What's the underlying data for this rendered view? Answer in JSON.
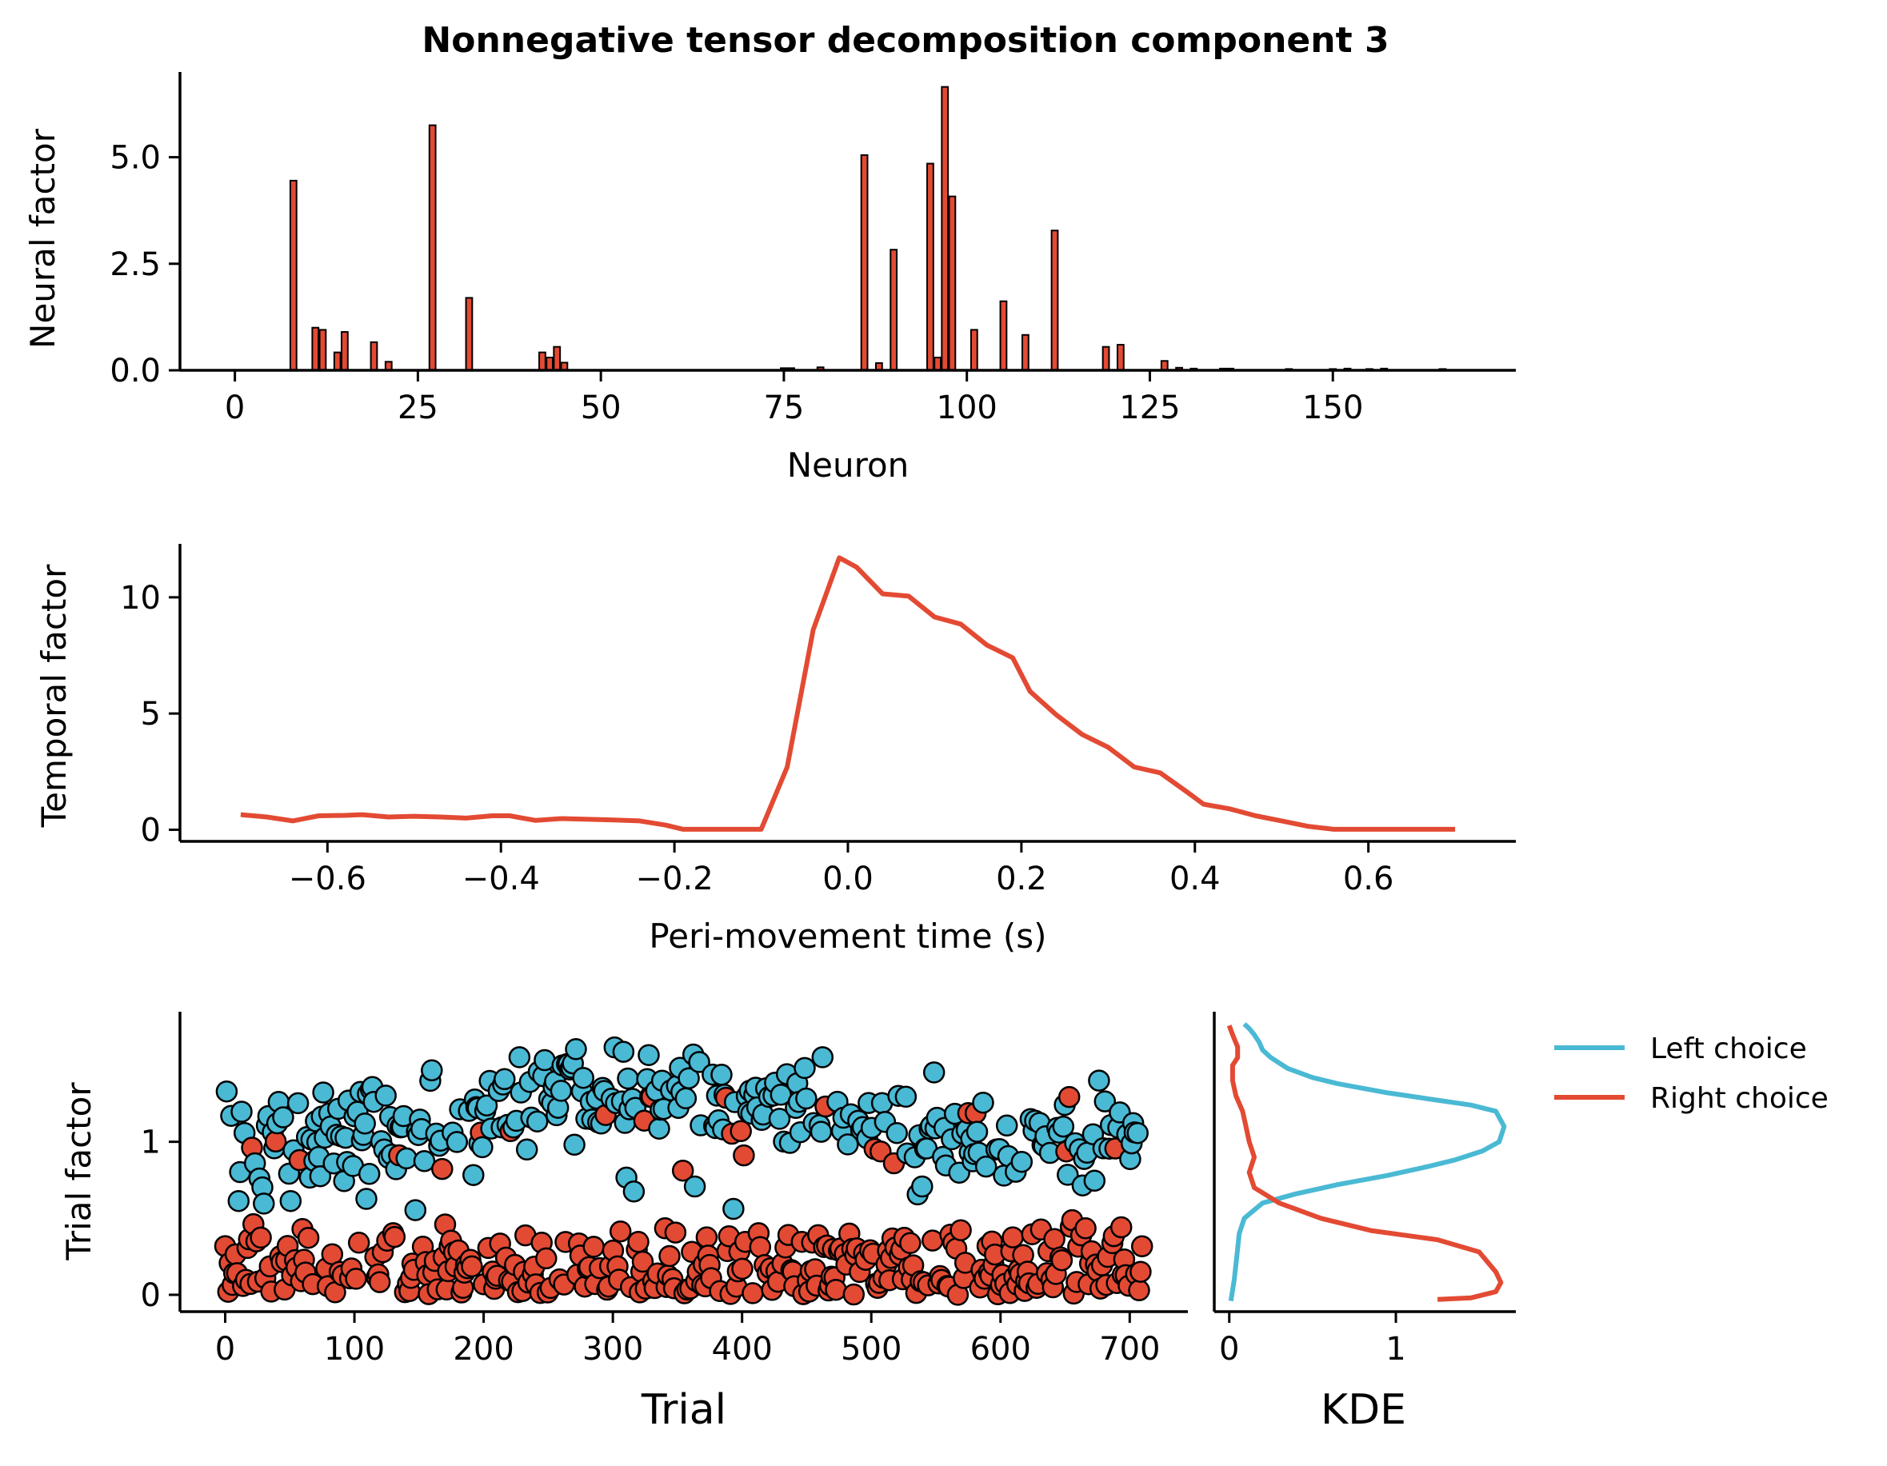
{
  "title": "Nonnegative tensor decomposition component 3",
  "colors": {
    "left": "#4ab9d4",
    "right": "#e34a33",
    "axis": "#000000"
  },
  "chart_data": [
    {
      "type": "bar",
      "name": "neural",
      "xlabel": "Neuron",
      "ylabel": "Neural factor",
      "xlim": [
        -7.5,
        175
      ],
      "ylim": [
        0,
        7.0
      ],
      "xticks": [
        0,
        25,
        50,
        75,
        100,
        125,
        150
      ],
      "yticks": [
        0.0,
        2.5,
        5.0
      ],
      "ytick_labels": [
        "0.0",
        "2.5",
        "5.0"
      ],
      "x": [
        8,
        11,
        12,
        14,
        15,
        19,
        21,
        27,
        32,
        42,
        43,
        44,
        45,
        75,
        76,
        80,
        86,
        88,
        90,
        95,
        96,
        97,
        98,
        101,
        105,
        108,
        112,
        119,
        121,
        127,
        129,
        131,
        135,
        136,
        144,
        150,
        152,
        155,
        157,
        165
      ],
      "values": [
        4.45,
        1.0,
        0.95,
        0.42,
        0.9,
        0.66,
        0.2,
        5.75,
        1.7,
        0.42,
        0.3,
        0.55,
        0.18,
        0.05,
        0.05,
        0.07,
        5.05,
        0.17,
        2.83,
        4.85,
        0.3,
        6.65,
        4.08,
        0.95,
        1.62,
        0.83,
        3.28,
        0.55,
        0.6,
        0.22,
        0.06,
        0.04,
        0.04,
        0.04,
        0.03,
        0.03,
        0.04,
        0.03,
        0.04,
        0.03
      ]
    },
    {
      "type": "line",
      "name": "temporal",
      "xlabel": "Peri-movement time (s)",
      "ylabel": "Temporal factor",
      "xlim": [
        -0.77,
        0.77
      ],
      "ylim": [
        -0.5,
        12.3
      ],
      "xticks": [
        -0.6,
        -0.4,
        -0.2,
        0.0,
        0.2,
        0.4,
        0.6
      ],
      "xtick_labels": [
        "−0.6",
        "−0.4",
        "−0.2",
        "0.0",
        "0.2",
        "0.4",
        "0.6"
      ],
      "yticks": [
        0,
        5,
        10
      ],
      "x": [
        -0.7,
        -0.67,
        -0.64,
        -0.61,
        -0.58,
        -0.56,
        -0.53,
        -0.5,
        -0.47,
        -0.44,
        -0.41,
        -0.39,
        -0.36,
        -0.33,
        -0.3,
        -0.27,
        -0.24,
        -0.21,
        -0.19,
        -0.16,
        -0.13,
        -0.1,
        -0.07,
        -0.04,
        -0.01,
        0.01,
        0.04,
        0.07,
        0.1,
        0.13,
        0.16,
        0.19,
        0.21,
        0.24,
        0.27,
        0.3,
        0.33,
        0.36,
        0.39,
        0.41,
        0.44,
        0.47,
        0.5,
        0.53,
        0.56,
        0.59,
        0.61,
        0.64,
        0.67,
        0.7
      ],
      "y": [
        0.65,
        0.55,
        0.38,
        0.6,
        0.62,
        0.65,
        0.55,
        0.58,
        0.55,
        0.5,
        0.6,
        0.6,
        0.4,
        0.48,
        0.45,
        0.42,
        0.38,
        0.2,
        0.02,
        0.02,
        0.02,
        0.02,
        2.7,
        8.6,
        11.7,
        11.3,
        10.15,
        10.05,
        9.15,
        8.85,
        7.95,
        7.4,
        5.95,
        4.95,
        4.1,
        3.55,
        2.7,
        2.45,
        1.65,
        1.1,
        0.9,
        0.6,
        0.38,
        0.15,
        0.02,
        0.02,
        0.02,
        0.02,
        0.02,
        0.02
      ]
    },
    {
      "type": "scatter",
      "name": "trial",
      "xlabel": "Trial",
      "ylabel": "Trial factor",
      "xlim": [
        -35,
        745
      ],
      "ylim": [
        -0.11,
        1.85
      ],
      "xticks": [
        0,
        100,
        200,
        300,
        400,
        500,
        600,
        700
      ],
      "yticks": [
        0,
        1
      ],
      "series": [
        {
          "name": "Left choice",
          "color": "#4ab9d4"
        },
        {
          "name": "Right choice",
          "color": "#e34a33"
        }
      ],
      "points": "Trials 0–710; left-choice trials mostly at 0.8–1.7 (peaking near 1.65 around trial 300–400), right-choice trials mostly at 0–0.6 with a few above 1."
    },
    {
      "type": "line",
      "name": "kde",
      "xlabel": "KDE",
      "ylabel": "",
      "xlim": [
        -0.09,
        1.72
      ],
      "ylim": [
        -0.11,
        1.85
      ],
      "xticks": [
        0,
        1
      ],
      "legend_position": "right",
      "series": [
        {
          "name": "Left choice",
          "color": "#4ab9d4",
          "x": [
            0.01,
            0.03,
            0.04,
            0.05,
            0.06,
            0.09,
            0.2,
            0.4,
            0.65,
            0.95,
            1.2,
            1.35,
            1.52,
            1.62,
            1.65,
            1.6,
            1.45,
            1.2,
            0.95,
            0.65,
            0.5,
            0.35,
            0.25,
            0.2,
            0.18,
            0.15,
            0.12,
            0.09
          ],
          "y": [
            -0.04,
            0.1,
            0.2,
            0.3,
            0.4,
            0.5,
            0.6,
            0.66,
            0.72,
            0.78,
            0.84,
            0.88,
            0.94,
            1.0,
            1.1,
            1.2,
            1.24,
            1.28,
            1.32,
            1.38,
            1.42,
            1.48,
            1.55,
            1.6,
            1.65,
            1.7,
            1.74,
            1.77
          ]
        },
        {
          "name": "Right choice",
          "color": "#e34a33",
          "x": [
            1.25,
            1.45,
            1.6,
            1.63,
            1.6,
            1.5,
            1.25,
            0.85,
            0.55,
            0.3,
            0.15,
            0.12,
            0.15,
            0.12,
            0.1,
            0.08,
            0.04,
            0.02,
            0.02,
            0.05,
            0.05,
            0.02,
            0.0
          ],
          "y": [
            -0.03,
            -0.02,
            0.02,
            0.08,
            0.15,
            0.28,
            0.36,
            0.42,
            0.5,
            0.6,
            0.7,
            0.8,
            0.9,
            1.0,
            1.1,
            1.2,
            1.3,
            1.4,
            1.5,
            1.55,
            1.62,
            1.7,
            1.76
          ]
        }
      ]
    }
  ]
}
